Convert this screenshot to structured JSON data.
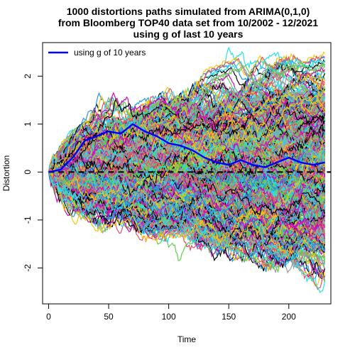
{
  "chart_data": {
    "type": "line",
    "title_lines": [
      "1000 distortions paths simulated from ARIMA(0,1,0)",
      "from Bloomberg TOP40  data set from 10/2002 - 12/2021",
      "using g of last 10 years"
    ],
    "xlabel": "Time",
    "ylabel": "Distortion",
    "xlim": [
      -5,
      235
    ],
    "ylim": [
      -2.75,
      2.7
    ],
    "x_ticks": [
      "0",
      "50",
      "100",
      "150",
      "200"
    ],
    "x_tick_values": [
      0,
      50,
      100,
      150,
      200
    ],
    "y_ticks": [
      "-2",
      "-1",
      "0",
      "1",
      "2"
    ],
    "y_tick_values": [
      -2,
      -1,
      0,
      1,
      2
    ],
    "n_paths": 1000,
    "n_steps": 230,
    "step_sd": 0.058,
    "reference_line": {
      "y": 0,
      "style": "dashed",
      "color": "#000000"
    },
    "legend": {
      "position": "top-left",
      "entries": [
        {
          "label": "using g of 10 years",
          "color": "#0000ff"
        }
      ]
    },
    "highlight_series": {
      "color": "#0000ff",
      "x": [
        0,
        10,
        20,
        30,
        40,
        50,
        60,
        70,
        80,
        90,
        100,
        110,
        120,
        130,
        140,
        150,
        160,
        170,
        180,
        190,
        200,
        210,
        220,
        230
      ],
      "y": [
        0,
        0.05,
        0.3,
        0.65,
        0.75,
        0.85,
        0.8,
        1.0,
        0.85,
        0.75,
        0.6,
        0.55,
        0.45,
        0.3,
        0.2,
        0.15,
        0.25,
        0.15,
        0.1,
        0.2,
        0.3,
        0.2,
        0.15,
        0.2
      ]
    },
    "palette": [
      "#000000",
      "#df536b",
      "#61d04f",
      "#2297e6",
      "#28e2e5",
      "#cd0bbc",
      "#f5c710",
      "#9e9e9e"
    ]
  }
}
